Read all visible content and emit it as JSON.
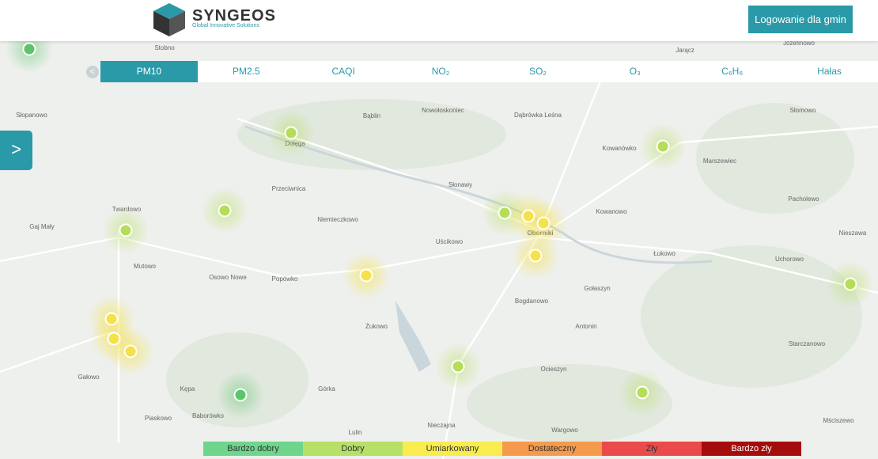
{
  "header": {
    "logo_title": "SYNGEOS",
    "logo_subtitle": "Global Innovative Solutions",
    "login_button": "Logowanie dla gmin"
  },
  "tabs": [
    "PM10",
    "PM2.5",
    "CAQI",
    "NO₂",
    "SO₂",
    "O₃",
    "C₆H₆",
    "Hałas"
  ],
  "places": [
    "Stobno",
    "Jarącz",
    "Józefinowo",
    "Słopanowo",
    "Bąblin",
    "Nowołoskoniec",
    "Dąbrówka Leśna",
    "Słomowo",
    "Dołęga",
    "Kowanówko",
    "Marszewiec",
    "Przeciwnica",
    "Słonawy",
    "Pacholewo",
    "Twardowo",
    "Gaj Mały",
    "Niemieczkowo",
    "Kowanowo",
    "Oborniki",
    "Nieszawa",
    "Uścikowo",
    "Łukowo",
    "Mutowo",
    "Uchorowo",
    "Osowo Nowe",
    "Popówko",
    "Gołaszyn",
    "Bogdanowo",
    "Antonin",
    "Żukowo",
    "Starczanowo",
    "Gałowo",
    "Ocieszyn",
    "Kępa",
    "Górka",
    "Piaskowo",
    "Baborówko",
    "Nieczajna",
    "Wargowo",
    "Lulin",
    "Mściszewo"
  ],
  "legend": [
    "Bardzo dobry",
    "Dobry",
    "Umiarkowany",
    "Dostateczny",
    "Zły",
    "Bardzo zły"
  ]
}
